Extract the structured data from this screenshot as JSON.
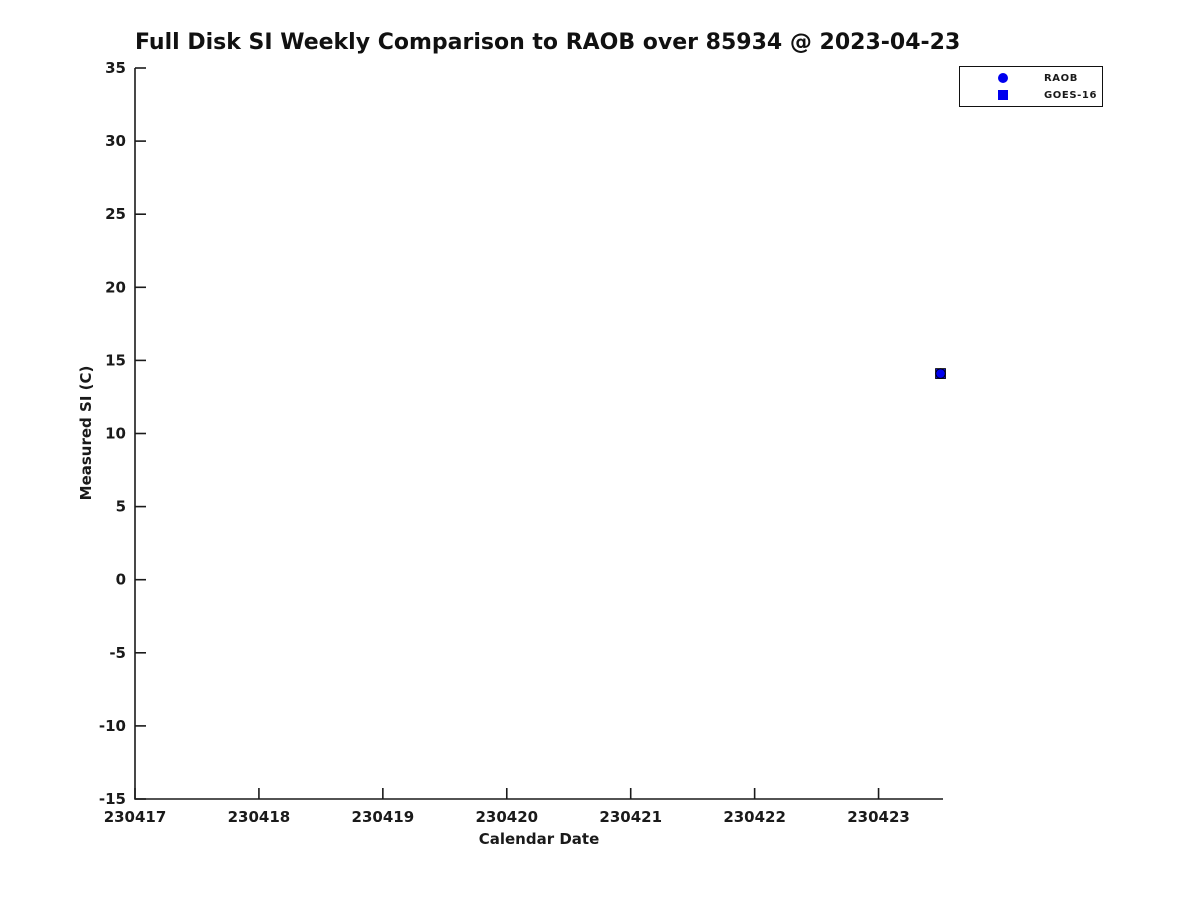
{
  "figure": {
    "title": "Full Disk SI Weekly Comparison to RAOB over 85934 @ 2023-04-23",
    "xlabel": "Calendar Date",
    "ylabel": "Measured SI (C)"
  },
  "chart_data": {
    "type": "scatter",
    "title": "Full Disk SI Weekly Comparison to RAOB over 85934 @ 2023-04-23",
    "xlabel": "Calendar Date",
    "ylabel": "Measured SI (C)",
    "xlim": [
      230417,
      230423.52
    ],
    "ylim": [
      -15,
      35
    ],
    "xticks": [
      230417,
      230418,
      230419,
      230420,
      230421,
      230422,
      230423
    ],
    "yticks": [
      -15,
      -10,
      -5,
      0,
      5,
      10,
      15,
      20,
      25,
      30,
      35
    ],
    "grid": false,
    "background": "#ffffff",
    "legend_position": "top-right",
    "series": [
      {
        "name": "RAOB",
        "marker": "circle",
        "color": "#0000EE",
        "points": [
          {
            "x": 230423.5,
            "y": 14.1
          }
        ]
      },
      {
        "name": "GOES-16",
        "marker": "square",
        "color": "#0000EE",
        "points": [
          {
            "x": 230423.5,
            "y": 14.1
          }
        ]
      }
    ],
    "colors": {
      "marker_blue": "#0000EE",
      "axis_text": "#1a1a1a"
    }
  }
}
